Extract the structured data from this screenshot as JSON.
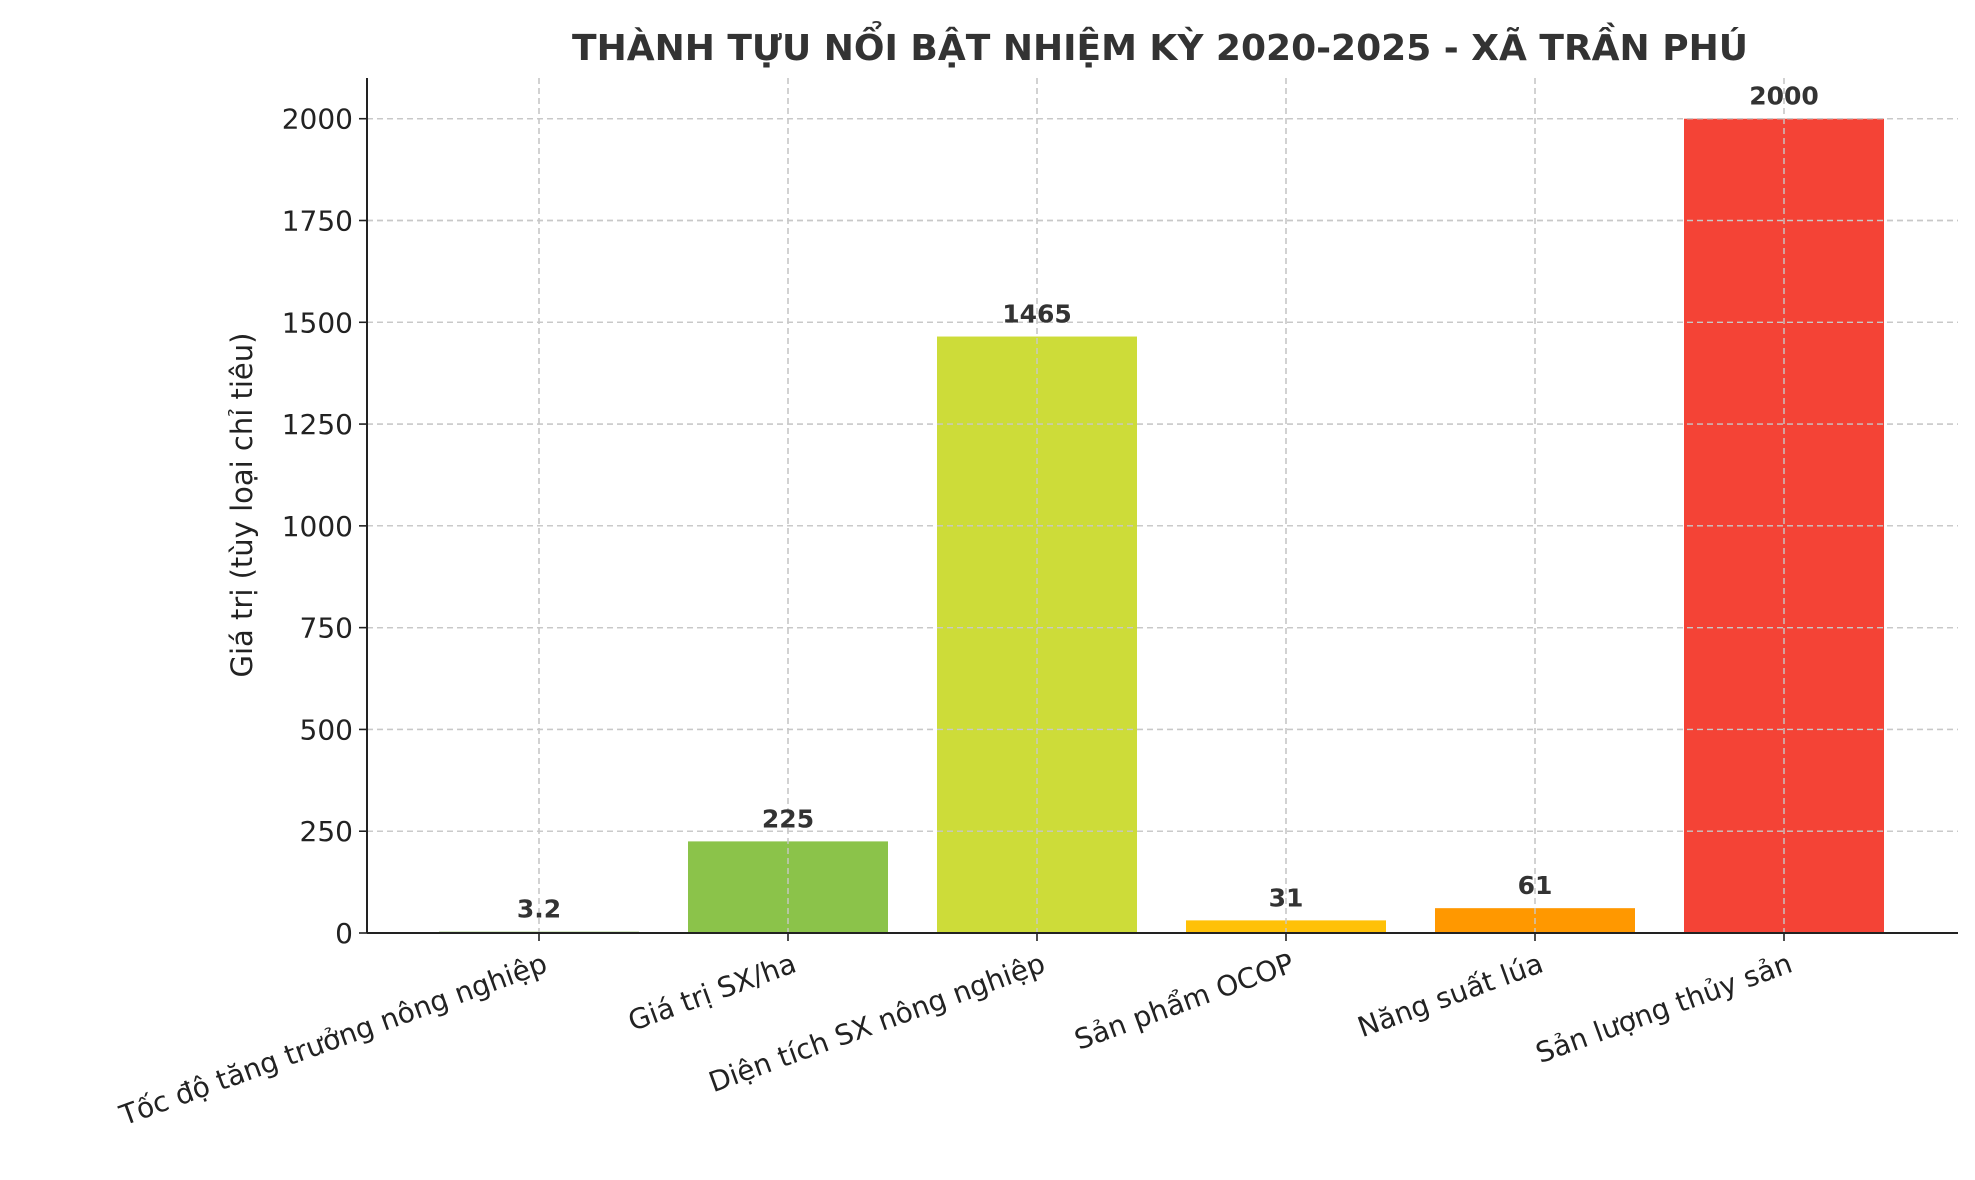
{
  "chart_data": {
    "type": "bar",
    "title": "THÀNH TỰU NỔI BẬT NHIỆM KỲ 2020-2025 - XÃ TRẦN PHÚ",
    "xlabel": "",
    "ylabel": "Giá trị (tùy loại chỉ tiêu)",
    "categories": [
      "Tốc độ tăng trưởng nông nghiệp",
      "Giá trị SX/ha",
      "Diện tích SX nông nghiệp",
      "Sản phẩm OCOP",
      "Năng suất lúa",
      "Sản lượng thủy sản"
    ],
    "values": [
      3.2,
      225,
      1465,
      31,
      61,
      2000
    ],
    "data_labels": [
      "3.2",
      "225",
      "1465",
      "31",
      "61",
      "2000"
    ],
    "colors": [
      "#7cb342",
      "#8bc34a",
      "#cddc39",
      "#ffc107",
      "#ff9800",
      "#f44336"
    ],
    "ylim": [
      0,
      2100
    ],
    "yticks": [
      0,
      250,
      500,
      750,
      1000,
      1250,
      1500,
      1750,
      2000
    ],
    "grid": true,
    "legend": "none"
  }
}
